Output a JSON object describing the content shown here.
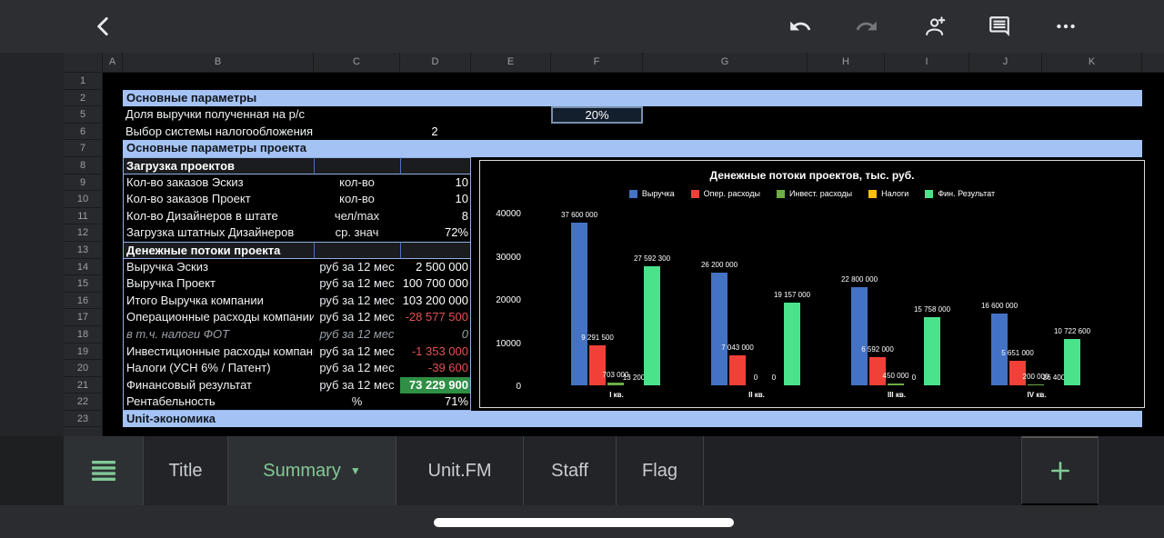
{
  "toolbar": {
    "back": "back",
    "actions": [
      "undo",
      "redo",
      "add-person",
      "comment",
      "more-options"
    ]
  },
  "colors": {
    "band_blue": "#a4c2f4",
    "negative_red": "#e35252",
    "result_green_bg": "#2f8f44",
    "tab_active_green": "#81c995",
    "selection_border": "#7790ad"
  },
  "spreadsheet": {
    "columns": [
      "A",
      "B",
      "C",
      "D",
      "E",
      "F",
      "G",
      "H",
      "I",
      "J",
      "K"
    ],
    "selected_cell": {
      "value": "20%"
    },
    "rows": [
      {
        "n": "1",
        "kind": "blank"
      },
      {
        "n": "2",
        "kind": "band",
        "label": "Основные параметры"
      },
      {
        "n": "5",
        "kind": "data",
        "label": "Доля выручки полученная на р/с",
        "unit": "",
        "value": ""
      },
      {
        "n": "6",
        "kind": "data",
        "label": "Выбор системы налогообложения",
        "unit": "",
        "value": "2",
        "value_align": "center"
      },
      {
        "n": "7",
        "kind": "band",
        "label": "Основные параметры проекта"
      },
      {
        "n": "8",
        "kind": "section",
        "label": "Загрузка проектов"
      },
      {
        "n": "9",
        "kind": "data",
        "table": true,
        "label": "Кол-во заказов Эскиз",
        "unit": "кол-во",
        "value": "10"
      },
      {
        "n": "10",
        "kind": "data",
        "table": true,
        "label": "Кол-во заказов Проект",
        "unit": "кол-во",
        "value": "10"
      },
      {
        "n": "11",
        "kind": "data",
        "table": true,
        "label": "Кол-во Дизайнеров в штате",
        "unit": "чел/max",
        "value": "8"
      },
      {
        "n": "12",
        "kind": "data",
        "table": true,
        "label": "Загрузка штатных Дизайнеров",
        "unit": "ср. знач",
        "value": "72%"
      },
      {
        "n": "13",
        "kind": "section",
        "label": "Денежные потоки проекта"
      },
      {
        "n": "14",
        "kind": "data",
        "table": true,
        "label": "Выручка Эскиз",
        "unit": "руб за 12 мес",
        "value": "2 500 000"
      },
      {
        "n": "15",
        "kind": "data",
        "table": true,
        "label": "Выручка Проект",
        "unit": "руб за 12 мес",
        "value": "100 700 000"
      },
      {
        "n": "16",
        "kind": "data",
        "table": true,
        "label": "Итого Выручка компании",
        "unit": "руб за 12 мес",
        "value": "103 200 000"
      },
      {
        "n": "17",
        "kind": "data",
        "table": true,
        "label": "Операционные расходы компании",
        "unit": "руб за 12 мес",
        "value": "-28 577 500",
        "value_style": "negative"
      },
      {
        "n": "18",
        "kind": "data",
        "table": true,
        "muted": true,
        "label": "в т.ч. налоги ФОТ",
        "unit": "руб за 12 мес",
        "value": "0"
      },
      {
        "n": "19",
        "kind": "data",
        "table": true,
        "label": "Инвестиционные расходы компании",
        "unit": "руб за 12 мес",
        "value": "-1 353 000",
        "value_style": "negative"
      },
      {
        "n": "20",
        "kind": "data",
        "table": true,
        "label": "Налоги (УСН 6% / Патент)",
        "unit": "руб за 12 мес",
        "value": "-39 600",
        "value_style": "negative"
      },
      {
        "n": "21",
        "kind": "data",
        "table": true,
        "label": "Финансовый результат",
        "unit": "руб за 12 мес",
        "value": "73 229 900",
        "value_style": "green"
      },
      {
        "n": "22",
        "kind": "data",
        "table": true,
        "table_last": true,
        "label": "Рентабельность",
        "unit": "%",
        "value": "71%"
      },
      {
        "n": "23",
        "kind": "band",
        "label": "Unit-экономика"
      }
    ]
  },
  "chart_data": {
    "type": "bar",
    "title": "Денежные потоки проектов, тыс. руб.",
    "categories": [
      "I кв.",
      "II кв.",
      "III кв.",
      "IV кв."
    ],
    "series": [
      {
        "name": "Выручка",
        "color": "#4472c4",
        "values": [
          37600000,
          26200000,
          22800000,
          16600000
        ],
        "labels": [
          "37 600 000",
          "26 200 000",
          "22 800 000",
          "16 600 000"
        ]
      },
      {
        "name": "Опер. расходы",
        "color": "#f14038",
        "values": [
          9291500,
          7043000,
          6592000,
          5651000
        ],
        "labels": [
          "9 291 500",
          "7 043 000",
          "6 592 000",
          "5 651 000"
        ]
      },
      {
        "name": "Инвест. расходы",
        "color": "#6fad47",
        "values": [
          703000,
          0,
          450000,
          200000
        ],
        "labels": [
          "703 000",
          "0",
          "450 000",
          "200 000"
        ]
      },
      {
        "name": "Налоги",
        "color": "#fdc006",
        "values": [
          13200,
          0,
          0,
          26400
        ],
        "labels": [
          "13 200",
          "0",
          "0",
          "26 400"
        ]
      },
      {
        "name": "Фин. Результат",
        "color": "#4ae38b",
        "values": [
          27592300,
          19157000,
          15758000,
          10722600
        ],
        "labels": [
          "27 592 300",
          "19 157 000",
          "15 758 000",
          "10 722 600"
        ]
      }
    ],
    "y_ticks": [
      "40000",
      "30000",
      "20000",
      "10000",
      "0"
    ],
    "ylim_thousands": [
      0,
      40000
    ],
    "legend_position": "top",
    "grid": false
  },
  "tab_bar": {
    "tabs": [
      {
        "label": "Title",
        "active": false
      },
      {
        "label": "Summary",
        "active": true,
        "dropdown": true
      },
      {
        "label": "Unit.FM",
        "active": false
      },
      {
        "label": "Staff",
        "active": false
      },
      {
        "label": "Flag",
        "active": false
      }
    ],
    "add_label": "+"
  }
}
